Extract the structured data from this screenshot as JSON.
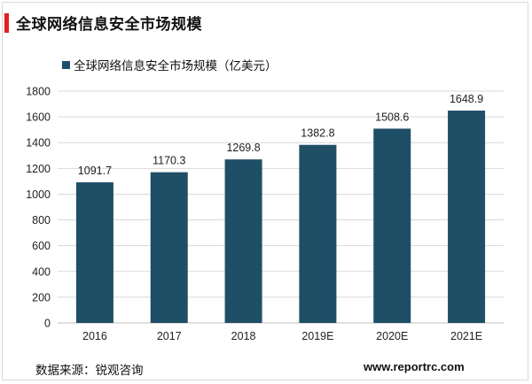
{
  "header": {
    "title": "全球网络信息安全市场规模"
  },
  "colors": {
    "accent": "#e02020",
    "bar": "#1f4e67"
  },
  "chart_data": {
    "type": "bar",
    "categories": [
      "2016",
      "2017",
      "2018",
      "2019E",
      "2020E",
      "2021E"
    ],
    "series": [
      {
        "name": "全球网络信息安全市场规模（亿美元）",
        "values": [
          1091.7,
          1170.3,
          1269.8,
          1382.8,
          1508.6,
          1648.9
        ]
      }
    ],
    "data_labels": [
      "1091.7",
      "1170.3",
      "1269.8",
      "1382.8",
      "1508.6",
      "1648.9"
    ],
    "ylim": [
      0,
      1800
    ],
    "yticks": [
      0,
      200,
      400,
      600,
      800,
      1000,
      1200,
      1400,
      1600,
      1800
    ],
    "grid": true,
    "legend_position": "top-left"
  },
  "footer": {
    "source": "数据来源：锐观咨询",
    "url": "www.reportrc.com"
  }
}
